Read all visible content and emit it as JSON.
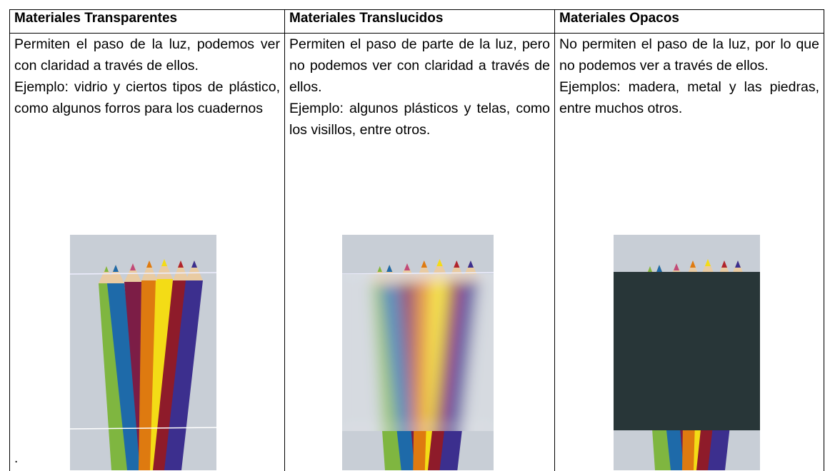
{
  "table": {
    "headers": [
      "Materiales Transparentes",
      "Materiales Translucidos",
      "Materiales Opacos"
    ],
    "cells": [
      {
        "description": "Permiten el paso de la luz, podemos ver con claridad a través de ellos.",
        "example": "Ejemplo: vidrio y ciertos tipos de plástico, como algunos forros para los cuadernos",
        "note": "."
      },
      {
        "description": "Permiten el paso de parte de la luz, pero no podemos ver con claridad a través de ellos.",
        "example": "Ejemplo: algunos plásticos y telas, como los visillos, entre otros."
      },
      {
        "description": "No permiten el paso de la luz, por lo que no podemos ver a través de ellos.",
        "example": "Ejemplos: madera, metal y las piedras, entre muchos otros."
      }
    ]
  }
}
